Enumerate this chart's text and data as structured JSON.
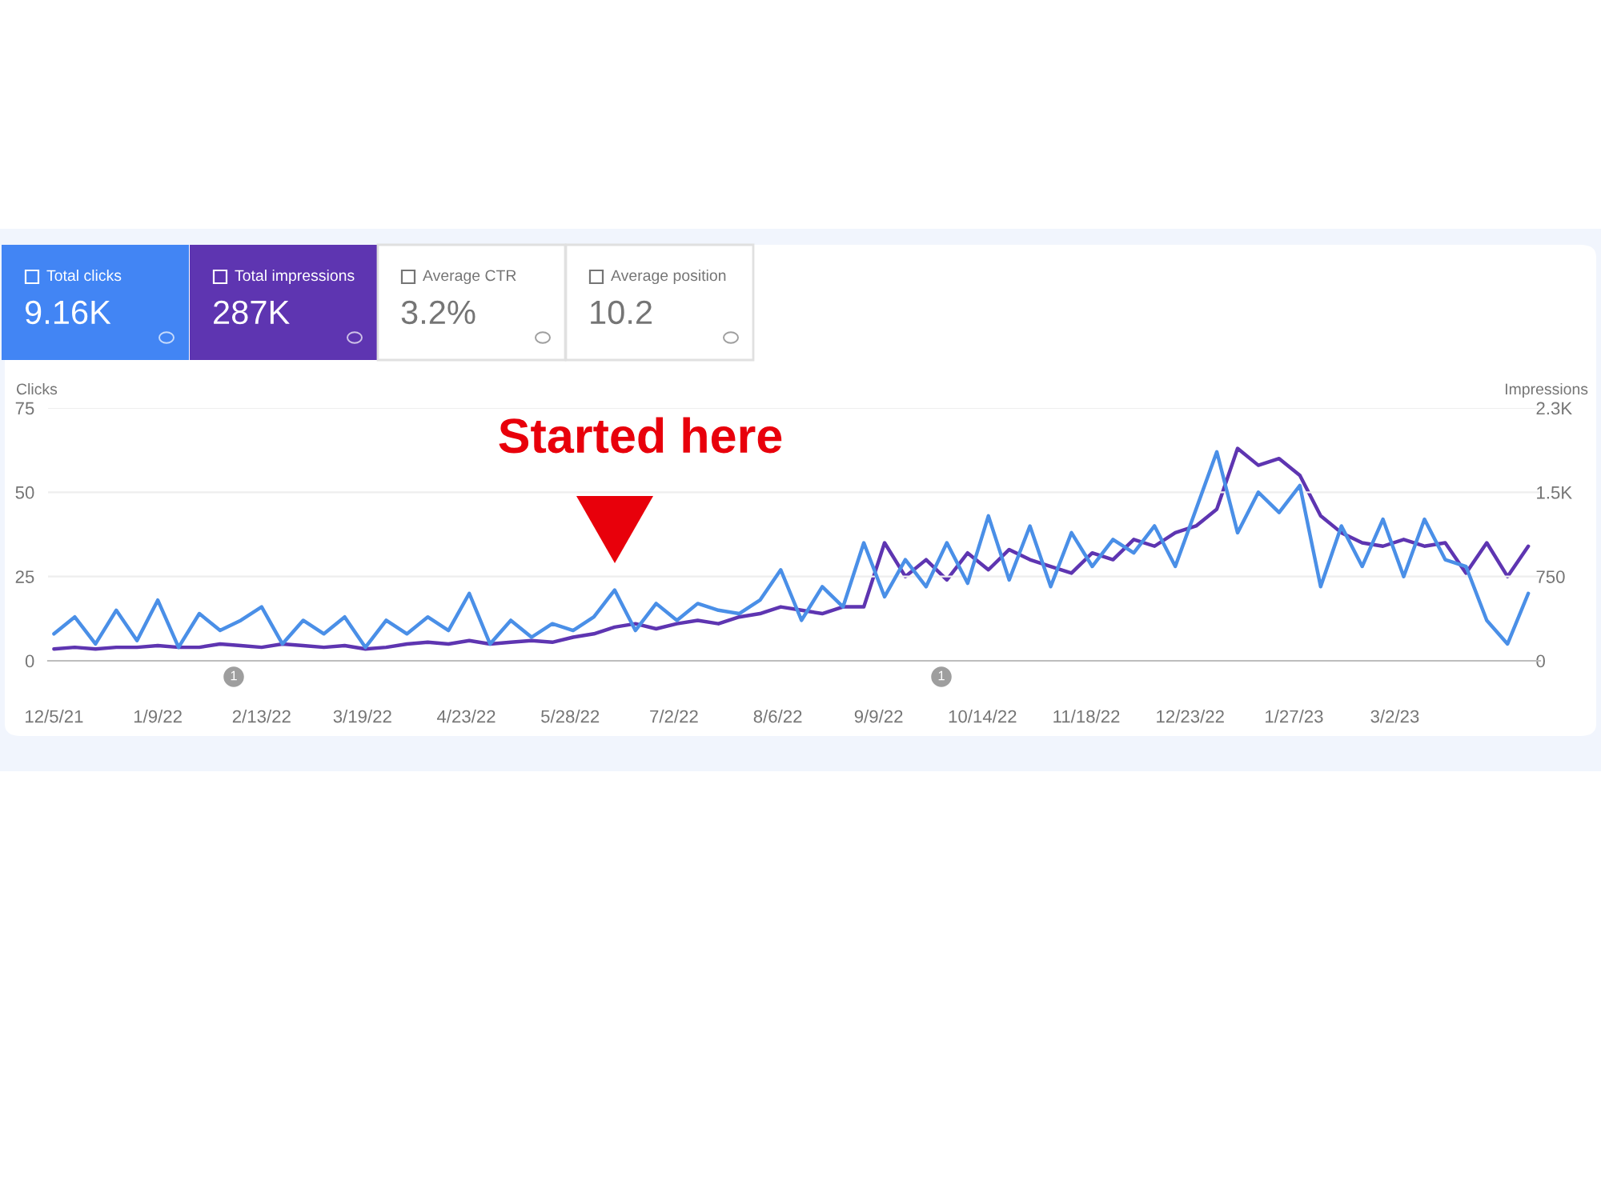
{
  "chart_data": {
    "type": "line",
    "ylabel": "Clicks",
    "y2label": "Impressions",
    "x": [
      "2021-12-05",
      "2021-12-12",
      "2021-12-19",
      "2021-12-26",
      "2022-01-02",
      "2022-01-09",
      "2022-01-16",
      "2022-01-23",
      "2022-01-30",
      "2022-02-06",
      "2022-02-13",
      "2022-02-20",
      "2022-02-27",
      "2022-03-06",
      "2022-03-13",
      "2022-03-20",
      "2022-03-27",
      "2022-04-03",
      "2022-04-10",
      "2022-04-17",
      "2022-04-24",
      "2022-05-01",
      "2022-05-08",
      "2022-05-15",
      "2022-05-22",
      "2022-05-29",
      "2022-06-05",
      "2022-06-12",
      "2022-06-19",
      "2022-06-26",
      "2022-07-03",
      "2022-07-10",
      "2022-07-17",
      "2022-07-24",
      "2022-07-31",
      "2022-08-07",
      "2022-08-14",
      "2022-08-21",
      "2022-08-28",
      "2022-09-04",
      "2022-09-11",
      "2022-09-18",
      "2022-09-25",
      "2022-10-02",
      "2022-10-09",
      "2022-10-16",
      "2022-10-23",
      "2022-10-30",
      "2022-11-06",
      "2022-11-13",
      "2022-11-20",
      "2022-11-27",
      "2022-12-04",
      "2022-12-11",
      "2022-12-18",
      "2022-12-25",
      "2023-01-01",
      "2023-01-08",
      "2023-01-15",
      "2023-01-22",
      "2023-01-29",
      "2023-02-05",
      "2023-02-12",
      "2023-02-19",
      "2023-02-26",
      "2023-03-05",
      "2023-03-12",
      "2023-03-19",
      "2023-03-26",
      "2023-04-02",
      "2023-04-09",
      "2023-04-16"
    ],
    "series": [
      {
        "color": "#5e35b1",
        "axis": "y2",
        "values": [
          105,
          120,
          105,
          120,
          120,
          135,
          120,
          120,
          150,
          135,
          120,
          150,
          135,
          120,
          135,
          105,
          120,
          150,
          165,
          150,
          180,
          150,
          165,
          180,
          165,
          210,
          240,
          300,
          330,
          285,
          330,
          360,
          330,
          390,
          420,
          480,
          450,
          420,
          480,
          480,
          1050,
          750,
          900,
          720,
          960,
          810,
          990,
          900,
          840,
          780,
          960,
          900,
          1080,
          1020,
          1140,
          1200,
          1350,
          1890,
          1740,
          1800,
          1650,
          1290,
          1140,
          1050,
          1020,
          1080,
          1020,
          1050,
          780,
          1050,
          750,
          1020
        ]
      },
      {
        "color": "#4a8fe7",
        "values": [
          8,
          13,
          5,
          15,
          6,
          18,
          4,
          14,
          9,
          12,
          16,
          5,
          12,
          8,
          13,
          4,
          12,
          8,
          13,
          9,
          20,
          5,
          12,
          7,
          11,
          9,
          13,
          21,
          9,
          17,
          12,
          17,
          15,
          14,
          18,
          27,
          12,
          22,
          16,
          35,
          19,
          30,
          22,
          35,
          23,
          43,
          24,
          40,
          22,
          38,
          28,
          36,
          32,
          40,
          28,
          45,
          62,
          38,
          50,
          44,
          52,
          22,
          40,
          28,
          42,
          25,
          42,
          30,
          28,
          12,
          5,
          20
        ]
      }
    ],
    "xlim": [
      "2021-12-03",
      "2023-04-20"
    ],
    "xticks": [
      {
        "value": "2021-12-05",
        "label": "12/5/21"
      },
      {
        "value": "2022-01-09",
        "label": "1/9/22"
      },
      {
        "value": "2022-02-13",
        "label": "2/13/22"
      },
      {
        "value": "2022-03-19",
        "label": "3/19/22"
      },
      {
        "value": "2022-04-23",
        "label": "4/23/22"
      },
      {
        "value": "2022-05-28",
        "label": "5/28/22"
      },
      {
        "value": "2022-07-02",
        "label": "7/2/22"
      },
      {
        "value": "2022-08-06",
        "label": "8/6/22"
      },
      {
        "value": "2022-09-09",
        "label": "9/9/22"
      },
      {
        "value": "2022-10-14",
        "label": "10/14/22"
      },
      {
        "value": "2022-11-18",
        "label": "11/18/22"
      },
      {
        "value": "2022-12-23",
        "label": "12/23/22"
      },
      {
        "value": "2023-01-27",
        "label": "1/27/23"
      },
      {
        "value": "2023-03-02",
        "label": "3/2/23"
      }
    ],
    "ylim": [
      0,
      75
    ],
    "yticks": [
      0,
      25,
      50,
      75
    ],
    "y2lim": [
      0,
      2250
    ],
    "y2ticks": [
      0,
      750,
      {
        "value": 1500,
        "label": "1.5K"
      },
      {
        "value": 2250,
        "label": "2.3K"
      }
    ],
    "grid": "y",
    "annotations": [
      "Total clicks",
      "9.16K",
      "Total impressions",
      "287K",
      "Average CTR",
      "3.2%",
      "Average position",
      "10.2",
      "Started here",
      "1",
      "1"
    ]
  }
}
